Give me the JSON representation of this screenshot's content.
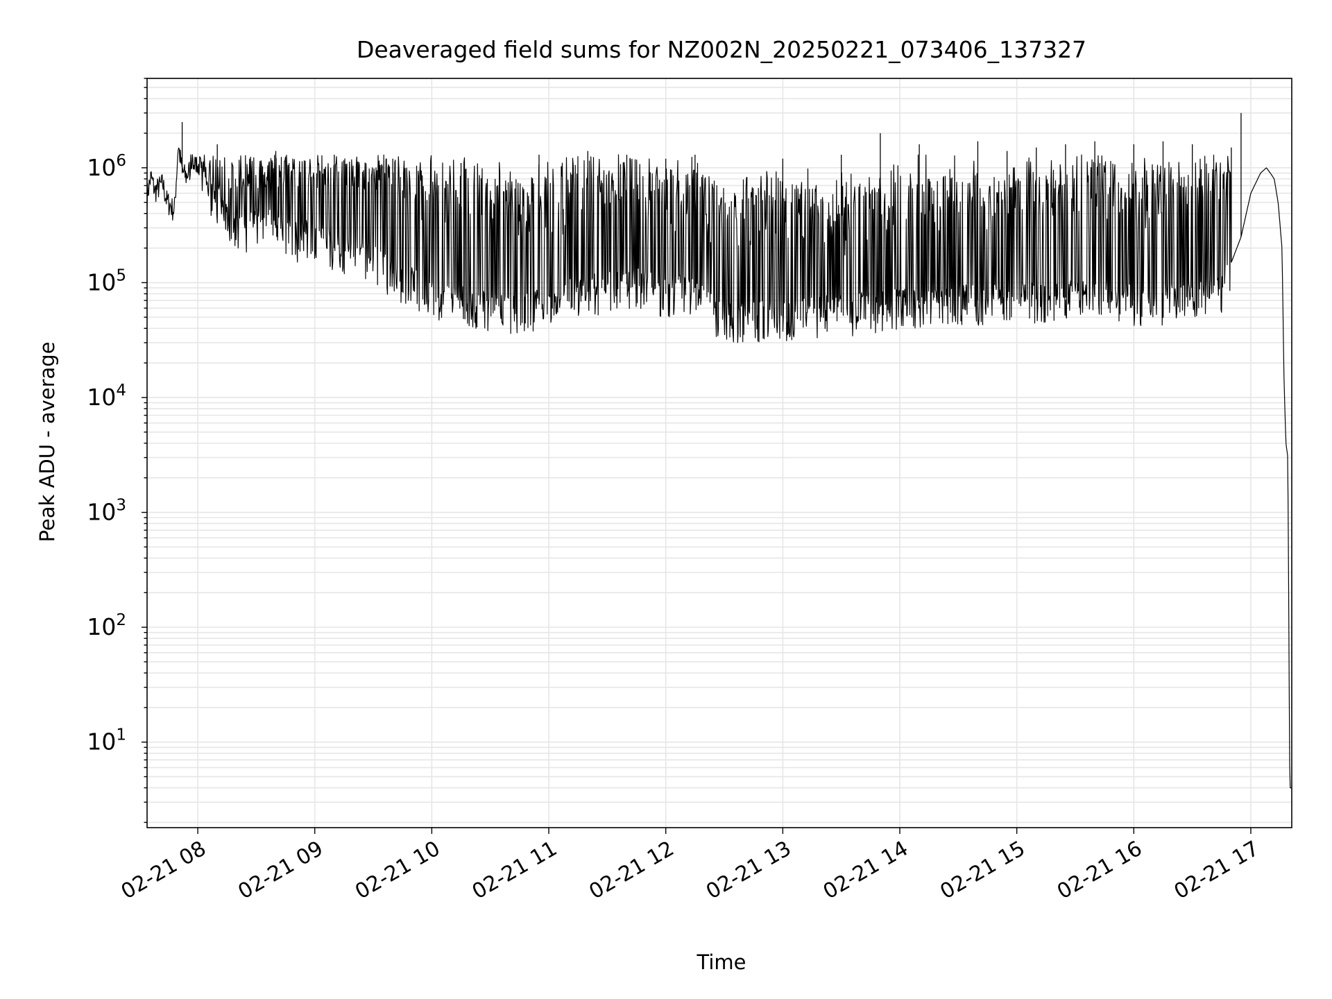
{
  "chart_data": {
    "type": "line",
    "title": "Deaveraged field sums for NZ002N_20250221_073406_137327",
    "xlabel": "Time",
    "ylabel": "Peak ADU - average",
    "yscale": "log",
    "grid": true,
    "line_color": "#000000",
    "grid_color": "#e6e6e6",
    "xlim": [
      "2025-02-21 07:34",
      "2025-02-21 17:21"
    ],
    "ylim": [
      1.8,
      6000000
    ],
    "x_tick_labels": [
      "02-21 08",
      "02-21 09",
      "02-21 10",
      "02-21 11",
      "02-21 12",
      "02-21 13",
      "02-21 14",
      "02-21 15",
      "02-21 16",
      "02-21 17"
    ],
    "y_tick_labels": [
      {
        "base": "10",
        "exp": "1"
      },
      {
        "base": "10",
        "exp": "2"
      },
      {
        "base": "10",
        "exp": "3"
      },
      {
        "base": "10",
        "exp": "4"
      },
      {
        "base": "10",
        "exp": "5"
      },
      {
        "base": "10",
        "exp": "6"
      }
    ],
    "series": [
      {
        "x": [
          "07:34",
          "07:36",
          "07:38",
          "07:40",
          "07:42",
          "07:44",
          "07:46",
          "07:48",
          "07:50",
          "07:52",
          "07:54",
          "07:57",
          "08:00",
          "08:05",
          "08:10",
          "08:15",
          "08:20",
          "08:25",
          "08:30",
          "08:40",
          "08:50",
          "09:00",
          "09:10",
          "09:20",
          "09:30",
          "09:40",
          "09:50",
          "10:00",
          "10:15",
          "10:30",
          "10:45",
          "11:00",
          "11:15",
          "11:30",
          "11:45",
          "12:00",
          "12:15",
          "12:25",
          "12:35",
          "12:45",
          "13:00",
          "13:15",
          "13:30",
          "13:45",
          "14:00",
          "14:30",
          "15:00",
          "15:30",
          "15:45",
          "16:00",
          "16:15",
          "16:30",
          "16:45",
          "16:55",
          "17:00",
          "17:05",
          "17:08",
          "17:10",
          "17:12",
          "17:14",
          "17:16",
          "17:17",
          "17:18",
          "17:19",
          "17:20",
          "17:21"
        ],
        "y": [
          550000,
          800000,
          600000,
          650000,
          700000,
          500000,
          450000,
          400000,
          1500000,
          900000,
          800000,
          1000000,
          900000,
          700000,
          500000,
          350000,
          300000,
          250000,
          350000,
          300000,
          250000,
          260000,
          200000,
          180000,
          160000,
          120000,
          100000,
          80000,
          70000,
          60000,
          55000,
          70000,
          80000,
          90000,
          100000,
          80000,
          90000,
          55000,
          50000,
          50000,
          50000,
          55000,
          55000,
          60000,
          65000,
          70000,
          70000,
          75000,
          75000,
          70000,
          70000,
          75000,
          90000,
          250000,
          600000,
          900000,
          1000000,
          900000,
          800000,
          500000,
          200000,
          15000,
          4000,
          3000,
          4,
          4
        ]
      }
    ],
    "spikes": {
      "x": [
        "07:52",
        "08:10",
        "08:40",
        "09:10",
        "09:40",
        "10:15",
        "10:55",
        "11:20",
        "11:40",
        "12:00",
        "12:15",
        "13:00",
        "13:30",
        "13:50",
        "14:10",
        "14:40",
        "14:55",
        "15:10",
        "15:25",
        "15:40",
        "16:00",
        "16:15",
        "16:30",
        "16:50",
        "16:55"
      ],
      "y": [
        2500000,
        1600000,
        1400000,
        1300000,
        1200000,
        1100000,
        1300000,
        1400000,
        1300000,
        1200000,
        1300000,
        1200000,
        1300000,
        2000000,
        1600000,
        1700000,
        1400000,
        1500000,
        1600000,
        1700000,
        1600000,
        1700000,
        1600000,
        1500000,
        3000000
      ]
    }
  }
}
